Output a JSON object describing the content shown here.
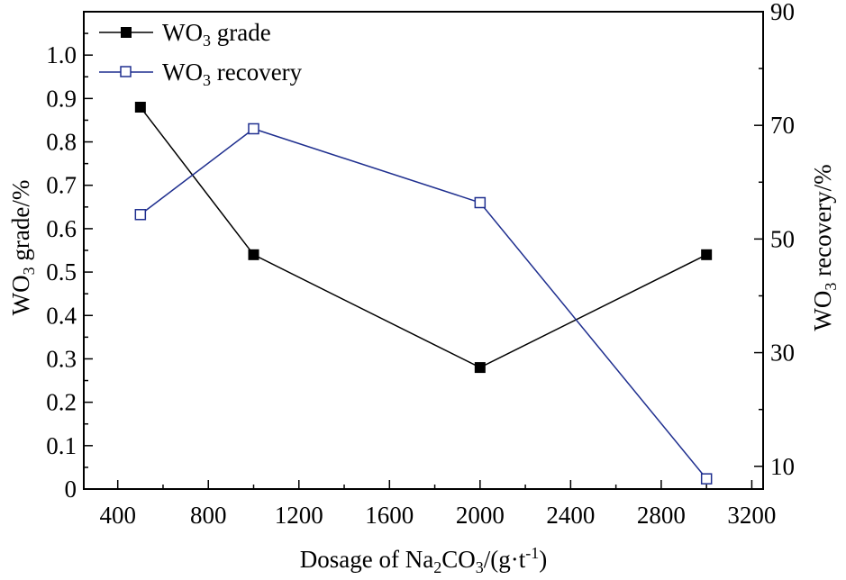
{
  "chart_data": {
    "type": "line",
    "x": [
      500,
      1000,
      2000,
      3000
    ],
    "xlim": [
      250,
      3250
    ],
    "xticks": [
      400,
      800,
      1200,
      1600,
      2000,
      2400,
      2800,
      3200
    ],
    "xlabel": {
      "pre": "Dosage of Na",
      "sub1": "2",
      "mid": "CO",
      "sub2": "3",
      "post1": "/(g·t",
      "sup": "-1",
      "post2": ")"
    },
    "ylabel_left": {
      "pre": "WO",
      "sub": "3",
      "post": " grade/%"
    },
    "ylabel_right": {
      "pre": "WO",
      "sub": "3",
      "post": " recovery/%"
    },
    "ylim_left": [
      0,
      1.1
    ],
    "yticks_left": [
      "0",
      "0.1",
      "0.2",
      "0.3",
      "0.4",
      "0.5",
      "0.6",
      "0.7",
      "0.8",
      "0.9",
      "1.0"
    ],
    "ylim_right": [
      6,
      90
    ],
    "yticks_right": [
      10,
      30,
      50,
      70,
      90
    ],
    "grid": false,
    "legend_position": "top-left",
    "series": [
      {
        "name_pre": "WO",
        "name_sub": "3",
        "name_post": " grade",
        "axis": "left",
        "values": [
          0.88,
          0.54,
          0.28,
          0.54
        ],
        "color": "#000000",
        "marker": "filled-square"
      },
      {
        "name_pre": "WO",
        "name_sub": "3",
        "name_post": " recovery",
        "axis": "right",
        "values": [
          54.3,
          69.4,
          56.4,
          7.8
        ],
        "color": "#1f2f8f",
        "marker": "open-square"
      }
    ]
  }
}
